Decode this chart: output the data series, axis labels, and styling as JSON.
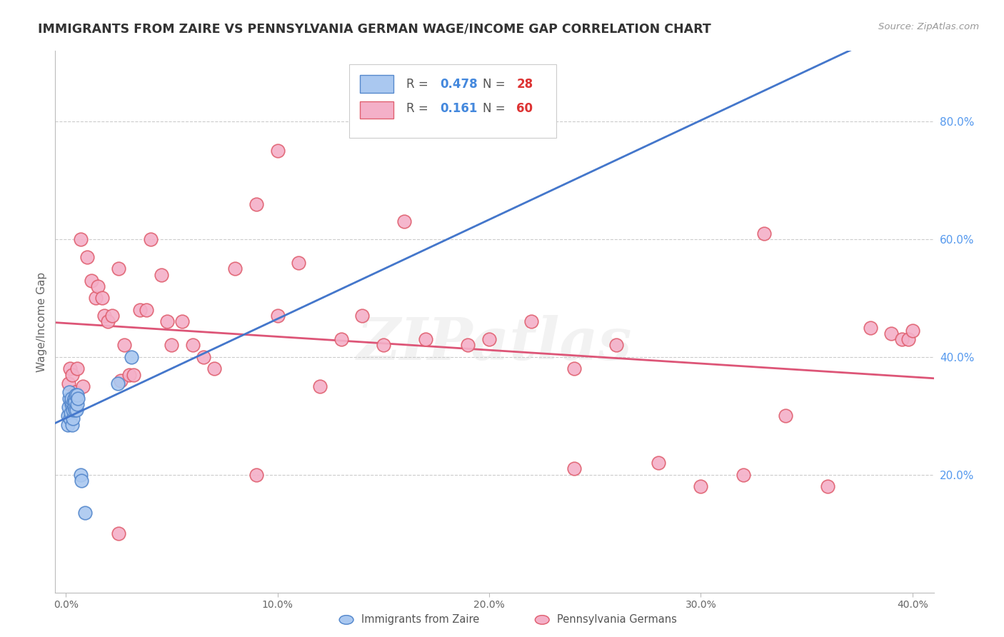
{
  "title": "IMMIGRANTS FROM ZAIRE VS PENNSYLVANIA GERMAN WAGE/INCOME GAP CORRELATION CHART",
  "source": "Source: ZipAtlas.com",
  "ylabel": "Wage/Income Gap",
  "watermark": "ZIPatlas",
  "blue_scatter_color": "#aac8f0",
  "blue_edge_color": "#5588cc",
  "pink_scatter_color": "#f4b0c8",
  "pink_edge_color": "#e06070",
  "blue_line_color": "#4477cc",
  "pink_line_color": "#dd5577",
  "dashed_line_color": "#aaaaaa",
  "background_color": "#ffffff",
  "grid_color": "#cccccc",
  "ytick_vals": [
    0.2,
    0.4,
    0.6,
    0.8
  ],
  "ytick_labels": [
    "20.0%",
    "40.0%",
    "60.0%",
    "80.0%"
  ],
  "xtick_vals": [
    0.0,
    0.1,
    0.2,
    0.3,
    0.4
  ],
  "xtick_labels": [
    "0.0%",
    "10.0%",
    "20.0%",
    "30.0%",
    "40.0%"
  ],
  "xmin": -0.005,
  "xmax": 0.41,
  "ymin": 0.0,
  "ymax": 0.92,
  "legend_r1": "0.478",
  "legend_n1": "28",
  "legend_r2": "0.161",
  "legend_n2": "60",
  "zaire_x": [
    0.0008,
    0.001,
    0.0012,
    0.0015,
    0.0018,
    0.002,
    0.0022,
    0.0025,
    0.0025,
    0.0028,
    0.003,
    0.0032,
    0.0033,
    0.0035,
    0.004,
    0.004,
    0.0042,
    0.0045,
    0.0048,
    0.005,
    0.0052,
    0.0055,
    0.0058,
    0.007,
    0.0075,
    0.009,
    0.0245,
    0.031
  ],
  "zaire_y": [
    0.285,
    0.3,
    0.315,
    0.33,
    0.34,
    0.295,
    0.305,
    0.32,
    0.325,
    0.33,
    0.285,
    0.295,
    0.31,
    0.325,
    0.315,
    0.33,
    0.31,
    0.325,
    0.335,
    0.31,
    0.32,
    0.335,
    0.33,
    0.2,
    0.19,
    0.135,
    0.355,
    0.4
  ],
  "penn_x": [
    0.0012,
    0.002,
    0.003,
    0.0045,
    0.0055,
    0.007,
    0.008,
    0.01,
    0.012,
    0.014,
    0.015,
    0.017,
    0.018,
    0.02,
    0.022,
    0.025,
    0.026,
    0.0275,
    0.03,
    0.032,
    0.035,
    0.038,
    0.04,
    0.045,
    0.048,
    0.05,
    0.055,
    0.06,
    0.065,
    0.07,
    0.08,
    0.09,
    0.1,
    0.11,
    0.12,
    0.13,
    0.14,
    0.15,
    0.17,
    0.19,
    0.2,
    0.22,
    0.24,
    0.26,
    0.28,
    0.3,
    0.32,
    0.34,
    0.36,
    0.38,
    0.39,
    0.395,
    0.398,
    0.4,
    0.24,
    0.09,
    0.16,
    0.33,
    0.025,
    0.1
  ],
  "penn_y": [
    0.355,
    0.38,
    0.37,
    0.34,
    0.38,
    0.6,
    0.35,
    0.57,
    0.53,
    0.5,
    0.52,
    0.5,
    0.47,
    0.46,
    0.47,
    0.55,
    0.36,
    0.42,
    0.37,
    0.37,
    0.48,
    0.48,
    0.6,
    0.54,
    0.46,
    0.42,
    0.46,
    0.42,
    0.4,
    0.38,
    0.55,
    0.66,
    0.47,
    0.56,
    0.35,
    0.43,
    0.47,
    0.42,
    0.43,
    0.42,
    0.43,
    0.46,
    0.38,
    0.42,
    0.22,
    0.18,
    0.2,
    0.3,
    0.18,
    0.45,
    0.44,
    0.43,
    0.43,
    0.445,
    0.21,
    0.2,
    0.63,
    0.61,
    0.1,
    0.75
  ]
}
